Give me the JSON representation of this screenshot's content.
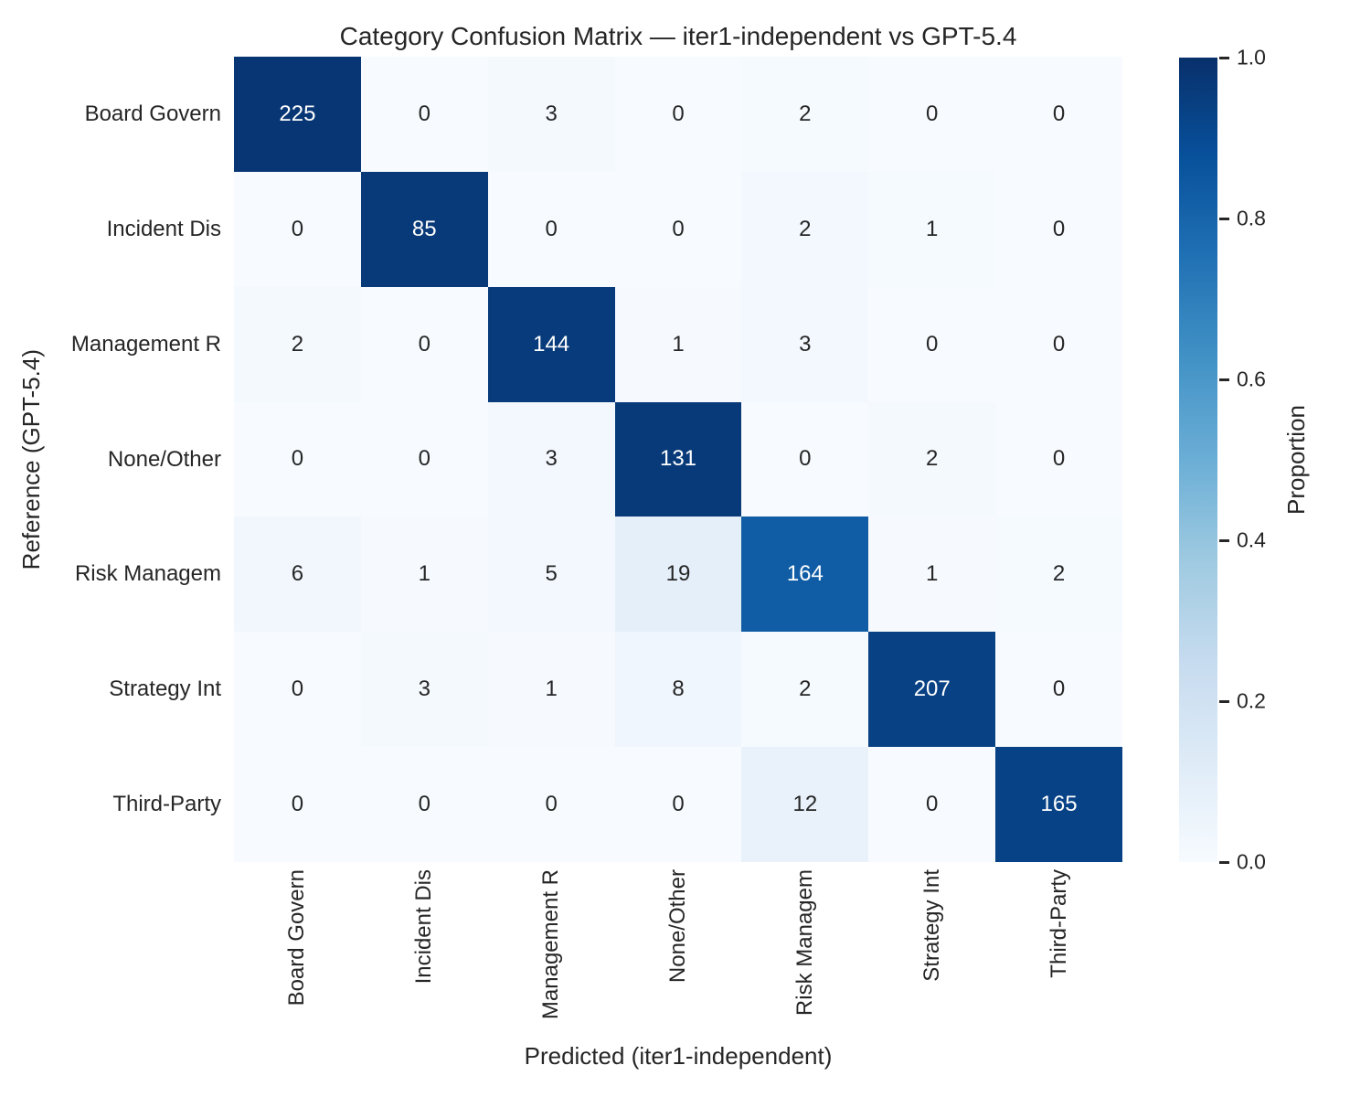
{
  "title": "Category Confusion Matrix — iter1-independent vs GPT-5.4",
  "chart_data": {
    "type": "heatmap",
    "title": "Category Confusion Matrix — iter1-independent vs GPT-5.4",
    "xlabel": "Predicted (iter1-independent)",
    "ylabel": "Reference (GPT-5.4)",
    "row_labels": [
      "Board Govern",
      "Incident Dis",
      "Management R",
      "None/Other",
      "Risk Managem",
      "Strategy Int",
      "Third-Party"
    ],
    "col_labels": [
      "Board Govern",
      "Incident Dis",
      "Management R",
      "None/Other",
      "Risk Managem",
      "Strategy Int",
      "Third-Party"
    ],
    "matrix": [
      [
        225,
        0,
        3,
        0,
        2,
        0,
        0
      ],
      [
        0,
        85,
        0,
        0,
        2,
        1,
        0
      ],
      [
        2,
        0,
        144,
        1,
        3,
        0,
        0
      ],
      [
        0,
        0,
        3,
        131,
        0,
        2,
        0
      ],
      [
        6,
        1,
        5,
        19,
        164,
        1,
        2
      ],
      [
        0,
        3,
        1,
        8,
        2,
        207,
        0
      ],
      [
        0,
        0,
        0,
        0,
        12,
        0,
        165
      ]
    ],
    "normalization": "row-proportion",
    "colormap": "Blues",
    "grid": false,
    "colorbar": {
      "label": "Proportion",
      "ticks": [
        "1.0",
        "0.8",
        "0.6",
        "0.4",
        "0.2",
        "0.0"
      ],
      "range": [
        0.0,
        1.0
      ]
    }
  },
  "colors": {
    "cmap_anchors_low_to_high": [
      "#f7fbff",
      "#deebf7",
      "#c6dbef",
      "#9ecae1",
      "#6baed6",
      "#4292c6",
      "#2171b5",
      "#08519c",
      "#08306b"
    ],
    "text_dark": "#262626",
    "text_light": "#ffffff",
    "background": "#ffffff"
  }
}
